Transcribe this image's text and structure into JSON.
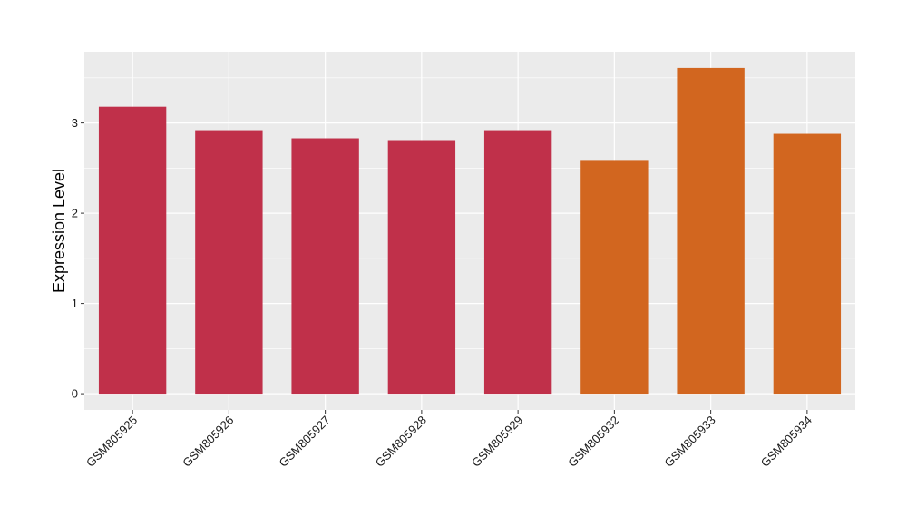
{
  "chart_data": {
    "type": "bar",
    "title": "",
    "xlabel": "",
    "ylabel": "Expression Level",
    "categories": [
      "GSM805925",
      "GSM805926",
      "GSM805927",
      "GSM805928",
      "GSM805929",
      "GSM805932",
      "GSM805933",
      "GSM805934"
    ],
    "values": [
      3.18,
      2.92,
      2.83,
      2.81,
      2.92,
      2.59,
      3.61,
      2.88
    ],
    "bar_colors": [
      "#c0304a",
      "#c0304a",
      "#c0304a",
      "#c0304a",
      "#c0304a",
      "#d2661f",
      "#d2661f",
      "#d2661f"
    ],
    "ylim": [
      -0.18,
      3.79
    ],
    "yticks": [
      0,
      1,
      2,
      3
    ],
    "ytick_labels": [
      "0",
      "1",
      "2",
      "3"
    ],
    "grid": true,
    "legend": "none",
    "panel_background": "#ebebeb",
    "gridline_color": "#ffffff"
  }
}
